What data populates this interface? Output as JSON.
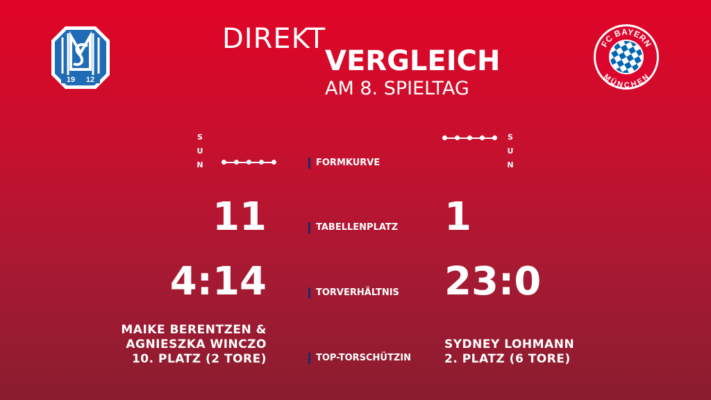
{
  "header": {
    "title_line1": "DIREKT",
    "title_line2": "VERGLEICH",
    "subtitle": "AM 8. SPIELTAG"
  },
  "crests": {
    "left": {
      "year_left": "19",
      "year_right": "12"
    },
    "right": {
      "top_text": "FC BAYERN",
      "bottom_text": "MÜNCHEN"
    }
  },
  "labels": {
    "form": "FORMKURVE",
    "table": "TABELLENPLATZ",
    "goals": "TORVERHÄLTNIS",
    "scorer": "TOP-TORSCHÜTZIN"
  },
  "form_legend": [
    "S",
    "U",
    "N"
  ],
  "left_team": {
    "table_place": "11",
    "goal_ratio": "4:14",
    "scorer_line1": "MAIKE BERENTZEN &",
    "scorer_line2": "AGNIESZKA WINCZO",
    "scorer_line3": "10. PLATZ (2 TORE)",
    "form": [
      "N",
      "N",
      "N",
      "N",
      "N"
    ]
  },
  "right_team": {
    "table_place": "1",
    "goal_ratio": "23:0",
    "scorer_line1": "SYDNEY LOHMANN",
    "scorer_line2": "2. PLATZ (6 TORE)",
    "form": [
      "S",
      "S",
      "S",
      "S",
      "S"
    ]
  },
  "colors": {
    "accent_bar": "#1b2a6b",
    "left_crest_blue": "#1f6bb5",
    "right_crest_red": "#dc052d",
    "right_crest_blue": "#0066b2"
  }
}
